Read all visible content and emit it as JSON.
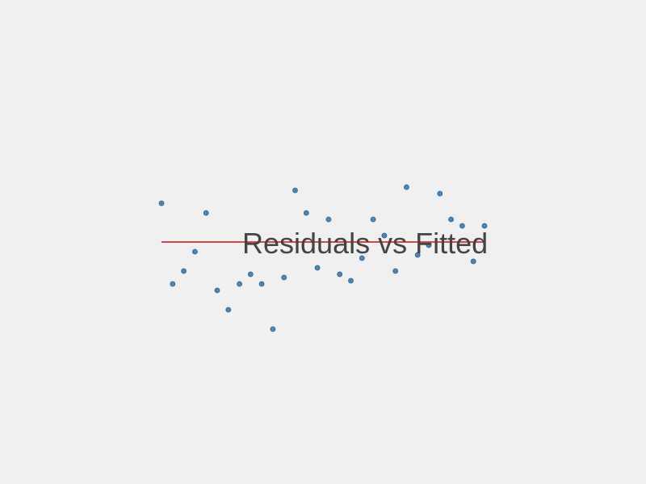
{
  "chart_data": {
    "type": "scatter",
    "title": "Residuals vs Fitted",
    "xlabel": "",
    "ylabel": "",
    "grid": false,
    "legend": "none",
    "xlim": [
      0,
      29
    ],
    "ylim": [
      -3.3,
      3.3
    ],
    "x": [
      0,
      1,
      2,
      3,
      4,
      5,
      6,
      7,
      8,
      9,
      10,
      11,
      12,
      13,
      14,
      15,
      16,
      17,
      18,
      19,
      20,
      21,
      22,
      23,
      24,
      25,
      26,
      27,
      28,
      29
    ],
    "y": [
      1.2,
      -1.3,
      -0.9,
      -0.3,
      0.9,
      -1.5,
      -2.1,
      -1.3,
      -1.0,
      -1.3,
      -2.7,
      -1.1,
      1.6,
      0.9,
      -0.8,
      0.7,
      -1.0,
      -1.2,
      -0.5,
      0.7,
      0.2,
      -0.9,
      1.7,
      -0.4,
      -0.1,
      1.5,
      0.7,
      0.5,
      -0.6,
      0.5
    ],
    "reference_line": 0,
    "colors": {
      "points": "#4a86b8",
      "point_edge": "#2f5f8a",
      "reference_line": "#cc1111",
      "title": "#444444",
      "background": "#f0f0f0"
    }
  }
}
